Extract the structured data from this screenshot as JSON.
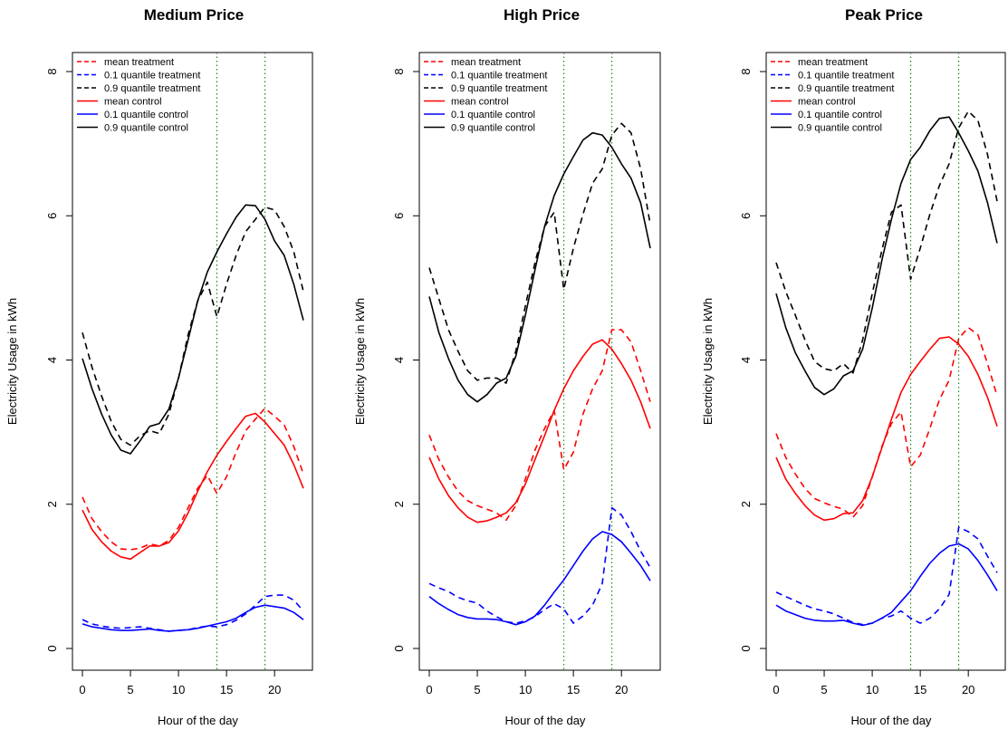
{
  "chart_data": [
    {
      "type": "line",
      "title": "Medium Price",
      "xlabel": "Hour of the day",
      "ylabel": "Electricity Usage in kWh",
      "xlim": [
        0,
        23
      ],
      "ylim": [
        0,
        8
      ],
      "xticks": [
        0,
        5,
        10,
        15,
        20
      ],
      "yticks": [
        0,
        2,
        4,
        6,
        8
      ],
      "grid": false,
      "legend_position": "top-left",
      "vlines": [
        14,
        19
      ],
      "x": [
        0,
        1,
        2,
        3,
        4,
        5,
        6,
        7,
        8,
        9,
        10,
        11,
        12,
        13,
        14,
        15,
        16,
        17,
        18,
        19,
        20,
        21,
        22,
        23
      ],
      "series": [
        {
          "name": "mean treatment",
          "color": "#ff0000",
          "dash": true,
          "values": [
            2.1,
            1.8,
            1.62,
            1.48,
            1.38,
            1.37,
            1.39,
            1.45,
            1.42,
            1.5,
            1.68,
            1.95,
            2.22,
            2.4,
            2.15,
            2.38,
            2.72,
            3.02,
            3.18,
            3.33,
            3.22,
            3.1,
            2.8,
            2.42
          ]
        },
        {
          "name": "0.1 quantile treatment",
          "color": "#0000ff",
          "dash": true,
          "values": [
            0.4,
            0.34,
            0.31,
            0.29,
            0.28,
            0.29,
            0.3,
            0.28,
            0.26,
            0.24,
            0.25,
            0.26,
            0.29,
            0.31,
            0.3,
            0.33,
            0.39,
            0.48,
            0.6,
            0.72,
            0.74,
            0.74,
            0.67,
            0.52
          ]
        },
        {
          "name": "0.9 quantile treatment",
          "color": "#000000",
          "dash": true,
          "values": [
            4.38,
            3.9,
            3.5,
            3.15,
            2.9,
            2.82,
            2.95,
            3.02,
            2.98,
            3.25,
            3.75,
            4.35,
            4.82,
            5.08,
            4.6,
            5.05,
            5.45,
            5.78,
            5.95,
            6.12,
            6.08,
            5.85,
            5.5,
            4.95
          ]
        },
        {
          "name": "mean control",
          "color": "#ff0000",
          "dash": false,
          "values": [
            1.92,
            1.65,
            1.48,
            1.35,
            1.27,
            1.24,
            1.33,
            1.42,
            1.42,
            1.47,
            1.63,
            1.88,
            2.18,
            2.45,
            2.68,
            2.87,
            3.05,
            3.22,
            3.26,
            3.14,
            2.98,
            2.82,
            2.55,
            2.22
          ]
        },
        {
          "name": "0.1 quantile control",
          "color": "#0000ff",
          "dash": false,
          "values": [
            0.34,
            0.3,
            0.28,
            0.26,
            0.25,
            0.25,
            0.26,
            0.27,
            0.25,
            0.24,
            0.25,
            0.26,
            0.28,
            0.31,
            0.34,
            0.37,
            0.42,
            0.5,
            0.57,
            0.6,
            0.58,
            0.56,
            0.5,
            0.4
          ]
        },
        {
          "name": "0.9 quantile control",
          "color": "#000000",
          "dash": false,
          "values": [
            4.02,
            3.6,
            3.25,
            2.96,
            2.75,
            2.7,
            2.88,
            3.08,
            3.12,
            3.32,
            3.75,
            4.28,
            4.82,
            5.22,
            5.5,
            5.75,
            5.98,
            6.15,
            6.14,
            5.95,
            5.65,
            5.45,
            5.05,
            4.55
          ]
        }
      ]
    },
    {
      "type": "line",
      "title": "High Price",
      "xlabel": "Hour of the day",
      "ylabel": "Electricity Usage in kWh",
      "xlim": [
        0,
        23
      ],
      "ylim": [
        0,
        8
      ],
      "xticks": [
        0,
        5,
        10,
        15,
        20
      ],
      "yticks": [
        0,
        2,
        4,
        6,
        8
      ],
      "grid": false,
      "legend_position": "top-left",
      "vlines": [
        14,
        19
      ],
      "x": [
        0,
        1,
        2,
        3,
        4,
        5,
        6,
        7,
        8,
        9,
        10,
        11,
        12,
        13,
        14,
        15,
        16,
        17,
        18,
        19,
        20,
        21,
        22,
        23
      ],
      "series": [
        {
          "name": "mean treatment",
          "color": "#ff0000",
          "dash": true,
          "values": [
            2.96,
            2.62,
            2.38,
            2.18,
            2.05,
            1.98,
            1.93,
            1.88,
            1.78,
            1.98,
            2.35,
            2.75,
            3.05,
            3.3,
            2.48,
            2.72,
            3.25,
            3.6,
            3.85,
            4.42,
            4.42,
            4.25,
            3.85,
            3.42
          ]
        },
        {
          "name": "0.1 quantile treatment",
          "color": "#0000ff",
          "dash": true,
          "values": [
            0.9,
            0.84,
            0.79,
            0.71,
            0.66,
            0.63,
            0.52,
            0.44,
            0.37,
            0.35,
            0.38,
            0.44,
            0.54,
            0.62,
            0.55,
            0.35,
            0.45,
            0.6,
            0.9,
            1.95,
            1.85,
            1.62,
            1.35,
            1.12
          ]
        },
        {
          "name": "0.9 quantile treatment",
          "color": "#000000",
          "dash": true,
          "values": [
            5.28,
            4.85,
            4.42,
            4.12,
            3.85,
            3.72,
            3.75,
            3.75,
            3.68,
            4.12,
            4.75,
            5.35,
            5.85,
            6.05,
            4.98,
            5.55,
            6.02,
            6.45,
            6.65,
            7.12,
            7.28,
            7.15,
            6.65,
            5.88
          ]
        },
        {
          "name": "mean control",
          "color": "#ff0000",
          "dash": false,
          "values": [
            2.65,
            2.35,
            2.12,
            1.95,
            1.82,
            1.75,
            1.77,
            1.82,
            1.88,
            2.02,
            2.28,
            2.62,
            2.95,
            3.3,
            3.6,
            3.85,
            4.05,
            4.22,
            4.28,
            4.15,
            3.95,
            3.72,
            3.42,
            3.05
          ]
        },
        {
          "name": "0.1 quantile control",
          "color": "#0000ff",
          "dash": false,
          "values": [
            0.72,
            0.62,
            0.54,
            0.47,
            0.43,
            0.41,
            0.41,
            0.4,
            0.37,
            0.33,
            0.37,
            0.45,
            0.6,
            0.78,
            0.95,
            1.15,
            1.35,
            1.52,
            1.62,
            1.58,
            1.48,
            1.32,
            1.15,
            0.94
          ]
        },
        {
          "name": "0.9 quantile control",
          "color": "#000000",
          "dash": false,
          "values": [
            4.88,
            4.38,
            4.02,
            3.72,
            3.52,
            3.42,
            3.52,
            3.68,
            3.75,
            4.05,
            4.62,
            5.25,
            5.85,
            6.28,
            6.58,
            6.82,
            7.05,
            7.15,
            7.12,
            6.95,
            6.72,
            6.52,
            6.18,
            5.55
          ]
        }
      ]
    },
    {
      "type": "line",
      "title": "Peak Price",
      "xlabel": "Hour of the day",
      "ylabel": "Electricity Usage in kWh",
      "xlim": [
        0,
        23
      ],
      "ylim": [
        0,
        8
      ],
      "xticks": [
        0,
        5,
        10,
        15,
        20
      ],
      "yticks": [
        0,
        2,
        4,
        6,
        8
      ],
      "grid": false,
      "legend_position": "top-left",
      "vlines": [
        14,
        19
      ],
      "x": [
        0,
        1,
        2,
        3,
        4,
        5,
        6,
        7,
        8,
        9,
        10,
        11,
        12,
        13,
        14,
        15,
        16,
        17,
        18,
        19,
        20,
        21,
        22,
        23
      ],
      "series": [
        {
          "name": "mean treatment",
          "color": "#ff0000",
          "dash": true,
          "values": [
            2.98,
            2.65,
            2.42,
            2.22,
            2.08,
            2.02,
            1.97,
            1.93,
            1.82,
            1.98,
            2.38,
            2.8,
            3.12,
            3.28,
            2.52,
            2.68,
            3.05,
            3.45,
            3.72,
            4.3,
            4.45,
            4.35,
            3.95,
            3.5
          ]
        },
        {
          "name": "0.1 quantile treatment",
          "color": "#0000ff",
          "dash": true,
          "values": [
            0.78,
            0.72,
            0.66,
            0.6,
            0.55,
            0.52,
            0.48,
            0.42,
            0.36,
            0.33,
            0.35,
            0.42,
            0.45,
            0.52,
            0.42,
            0.35,
            0.42,
            0.55,
            0.75,
            1.68,
            1.62,
            1.52,
            1.28,
            1.05
          ]
        },
        {
          "name": "0.9 quantile treatment",
          "color": "#000000",
          "dash": true,
          "values": [
            5.35,
            4.95,
            4.62,
            4.28,
            3.98,
            3.88,
            3.85,
            3.95,
            3.82,
            4.28,
            4.92,
            5.52,
            6.05,
            6.15,
            5.12,
            5.55,
            6.02,
            6.42,
            6.72,
            7.22,
            7.45,
            7.32,
            6.85,
            6.2
          ]
        },
        {
          "name": "mean control",
          "color": "#ff0000",
          "dash": false,
          "values": [
            2.65,
            2.35,
            2.15,
            1.98,
            1.85,
            1.78,
            1.8,
            1.87,
            1.88,
            2.05,
            2.38,
            2.78,
            3.18,
            3.55,
            3.8,
            3.98,
            4.15,
            4.3,
            4.32,
            4.22,
            4.05,
            3.8,
            3.48,
            3.08
          ]
        },
        {
          "name": "0.1 quantile control",
          "color": "#0000ff",
          "dash": false,
          "values": [
            0.6,
            0.52,
            0.47,
            0.42,
            0.39,
            0.38,
            0.38,
            0.39,
            0.35,
            0.32,
            0.35,
            0.42,
            0.5,
            0.65,
            0.8,
            1.0,
            1.18,
            1.32,
            1.42,
            1.45,
            1.38,
            1.22,
            1.02,
            0.8
          ]
        },
        {
          "name": "0.9 quantile control",
          "color": "#000000",
          "dash": false,
          "values": [
            4.92,
            4.45,
            4.1,
            3.85,
            3.62,
            3.52,
            3.6,
            3.78,
            3.85,
            4.15,
            4.72,
            5.38,
            5.95,
            6.45,
            6.78,
            6.95,
            7.18,
            7.35,
            7.37,
            7.15,
            6.9,
            6.62,
            6.18,
            5.62
          ]
        }
      ]
    }
  ]
}
